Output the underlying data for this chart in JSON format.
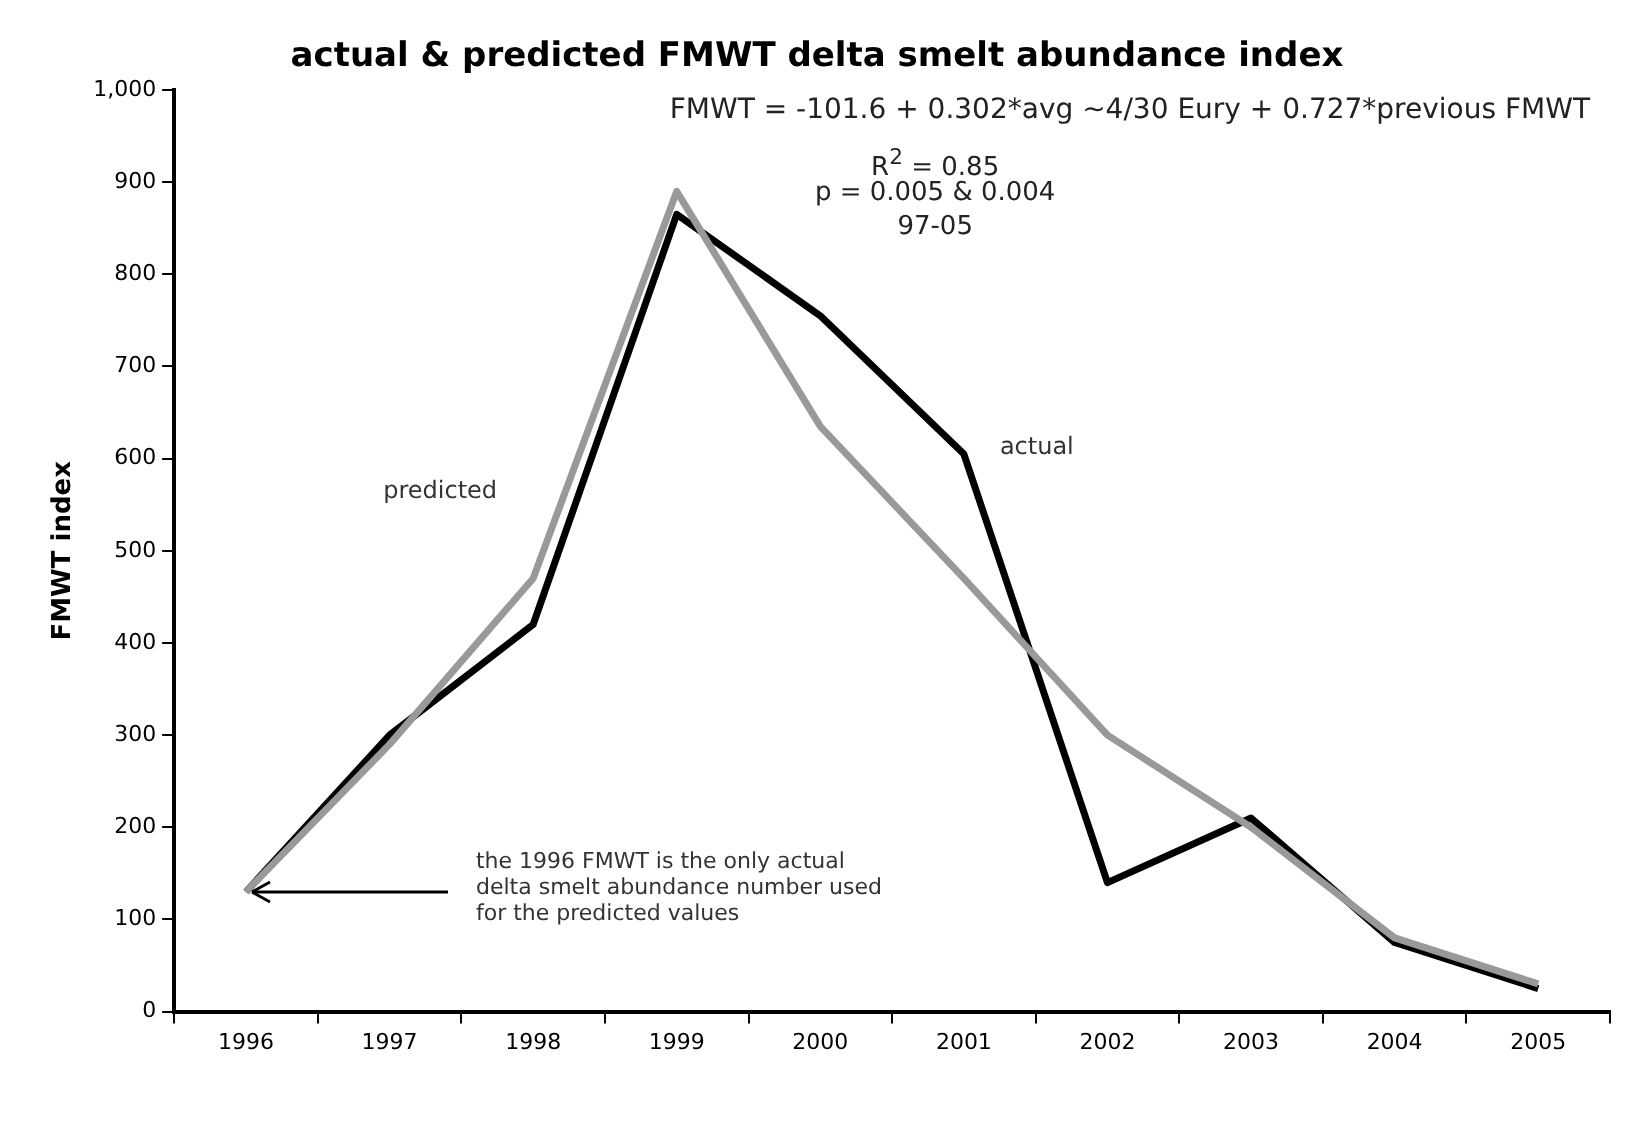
{
  "chart_data": {
    "type": "line",
    "title": "actual & predicted FMWT delta smelt abundance index",
    "ylabel": "FMWT index",
    "categories": [
      "1996",
      "1997",
      "1998",
      "1999",
      "2000",
      "2001",
      "2002",
      "2003",
      "2004",
      "2005"
    ],
    "series": [
      {
        "name": "predicted",
        "color": "#999999",
        "values": [
          130,
          290,
          470,
          890,
          635,
          470,
          300,
          200,
          80,
          30
        ]
      },
      {
        "name": "actual",
        "color": "#000000",
        "values": [
          130,
          300,
          420,
          865,
          755,
          605,
          140,
          210,
          75,
          25
        ]
      }
    ],
    "ylim": [
      0,
      1000
    ],
    "yticks": [
      0,
      100,
      200,
      300,
      400,
      500,
      600,
      700,
      800,
      900,
      {
        "value": 1000,
        "label": "1,000"
      }
    ],
    "grid": false,
    "legend": false,
    "marker": "none",
    "line_style": "solid",
    "annotations": [
      "FMWT = -101.6 + 0.302*avg ~4/30 Eury + 0.727*previous FMWT",
      "R$^{2}$ = 0.85",
      "p = 0.005 & 0.004",
      "97-05",
      {
        "text": "the 1996 FMWT is the only actual delta smelt abundance number used for the predicted values",
        "x": "1996",
        "y": 130
      }
    ]
  }
}
